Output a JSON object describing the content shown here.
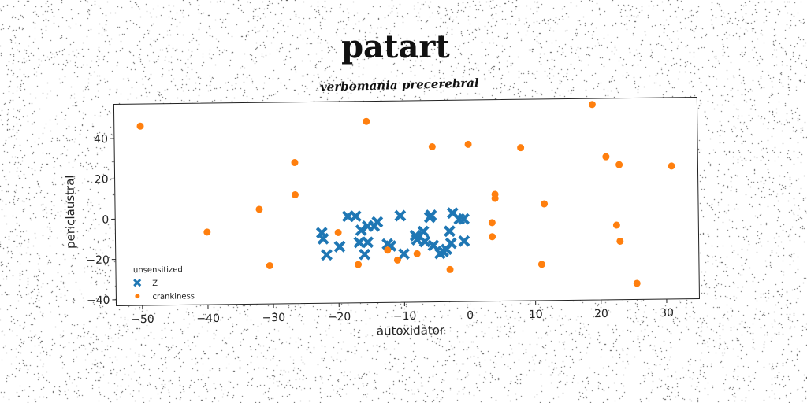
{
  "chart_data": {
    "type": "scatter",
    "title": "patart",
    "subtitle": "verbomania precerebral",
    "xlabel": "autoxidator",
    "ylabel": "periclaustral",
    "xlim": [
      -54,
      35
    ],
    "ylim": [
      -43,
      57
    ],
    "xticks": [
      "−50",
      "−40",
      "−30",
      "−20",
      "−10",
      "0",
      "10",
      "20",
      "30"
    ],
    "yticks": [
      "−40",
      "−20",
      "0",
      "20",
      "40"
    ],
    "xtick_values": [
      -50,
      -40,
      -30,
      -20,
      -10,
      0,
      10,
      20,
      30
    ],
    "ytick_values": [
      -40,
      -20,
      0,
      20,
      40
    ],
    "grid": false,
    "legend": {
      "title": "unsensitized",
      "placement": "lower-left"
    },
    "series": [
      {
        "name": "Z",
        "marker": "x",
        "color": "#1f77b4",
        "points": [
          [
            -22.5,
            -8
          ],
          [
            -22.3,
            -11
          ],
          [
            -21.8,
            -19
          ],
          [
            -19.8,
            -15
          ],
          [
            -18.5,
            0
          ],
          [
            -17.3,
            0
          ],
          [
            -16.5,
            -7
          ],
          [
            -15.5,
            -5
          ],
          [
            -14.5,
            -5
          ],
          [
            -14,
            -3
          ],
          [
            -16.8,
            -13
          ],
          [
            -15.5,
            -13
          ],
          [
            -16,
            -19
          ],
          [
            -12.5,
            -14
          ],
          [
            -12,
            -15
          ],
          [
            -10.5,
            0
          ],
          [
            -10,
            -19
          ],
          [
            -8.2,
            -10
          ],
          [
            -8,
            -12
          ],
          [
            -7,
            -8
          ],
          [
            -6.8,
            -13
          ],
          [
            -6,
            -1
          ],
          [
            -5.8,
            0
          ],
          [
            -5.5,
            -15
          ],
          [
            -4.5,
            -19
          ],
          [
            -4,
            -18
          ],
          [
            -3.5,
            -17
          ],
          [
            -3,
            -8
          ],
          [
            -2.8,
            -14
          ],
          [
            -2.5,
            1
          ],
          [
            -1.5,
            -2
          ],
          [
            -0.8,
            -2
          ],
          [
            -0.8,
            -13
          ]
        ]
      },
      {
        "name": "crankiness",
        "marker": "o",
        "color": "#ff7f0e",
        "points": [
          [
            -50,
            46
          ],
          [
            -40,
            -7
          ],
          [
            -32,
            4
          ],
          [
            -30.5,
            -24
          ],
          [
            -26.5,
            27
          ],
          [
            -26.5,
            11
          ],
          [
            -20,
            -8
          ],
          [
            -17,
            -24
          ],
          [
            -15.5,
            47
          ],
          [
            -12.5,
            -17
          ],
          [
            -11,
            -22
          ],
          [
            -8,
            -19
          ],
          [
            -5.5,
            34
          ],
          [
            -3,
            -27
          ],
          [
            0,
            35
          ],
          [
            3.5,
            -4
          ],
          [
            3.5,
            -11
          ],
          [
            4,
            10
          ],
          [
            4,
            8
          ],
          [
            8,
            33
          ],
          [
            11,
            -25
          ],
          [
            11.5,
            5
          ],
          [
            19,
            54
          ],
          [
            21,
            28
          ],
          [
            22.5,
            -6
          ],
          [
            23,
            24
          ],
          [
            23,
            -14
          ],
          [
            25.5,
            -35
          ],
          [
            31,
            23
          ]
        ]
      }
    ]
  }
}
